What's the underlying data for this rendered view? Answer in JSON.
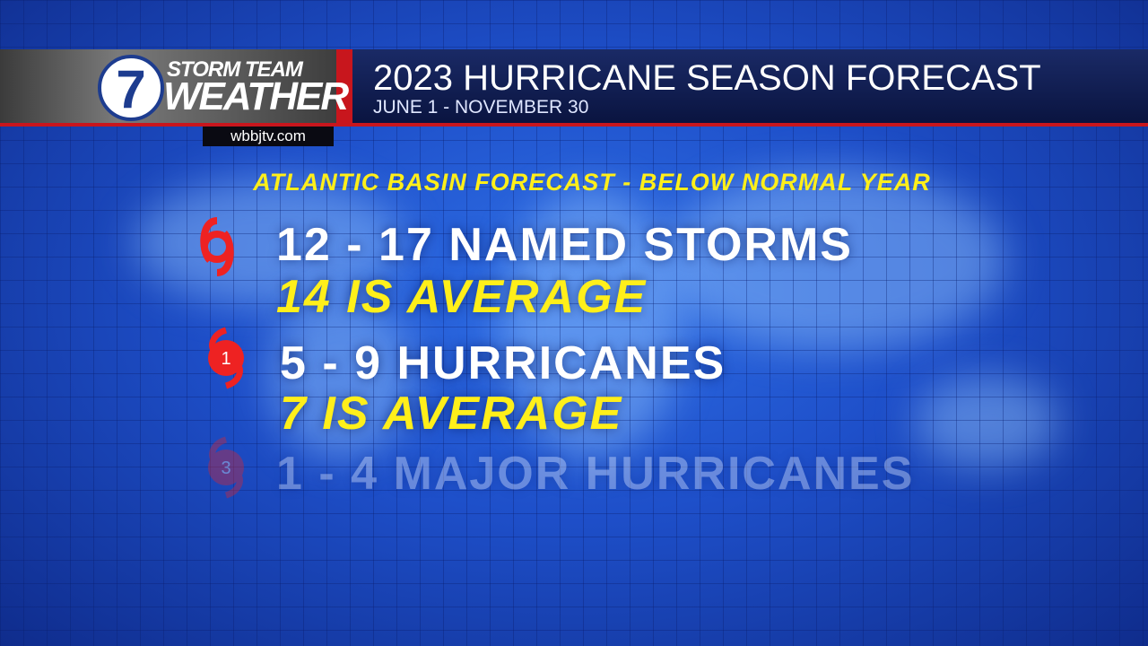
{
  "header": {
    "logo_number": "7",
    "logo_line1": "STORM TEAM",
    "logo_line2": "WEATHER",
    "title": "2023 HURRICANE SEASON FORECAST",
    "subtitle": "JUNE 1 - NOVEMBER 30",
    "website": "wbbjtv.com"
  },
  "body": {
    "heading": "ATLANTIC BASIN FORECAST - BELOW NORMAL YEAR",
    "items": [
      {
        "main": "12 - 17 NAMED STORMS",
        "average": "14 IS AVERAGE"
      },
      {
        "icon_label": "1",
        "main": "5 - 9 HURRICANES",
        "average": "7 IS AVERAGE"
      },
      {
        "icon_label": "3",
        "main": "1 - 4 MAJOR HURRICANES"
      }
    ]
  }
}
